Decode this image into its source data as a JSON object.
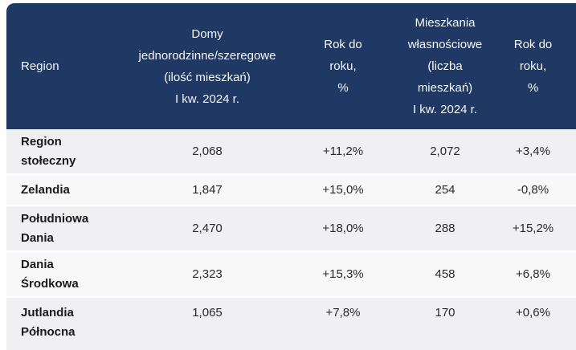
{
  "colors": {
    "header_bg": "#1f3864",
    "header_text": "#f5f7fa",
    "row_odd": "#f0f0f2",
    "row_even": "#f8f8f9",
    "body_text": "#2a2a2a"
  },
  "chart_data": {
    "type": "table",
    "columns": [
      "Region",
      "Domy jednorodzinne/szeregowe (ilość mieszkań) I kw. 2024 r.",
      "Rok do roku, %",
      "Mieszkania własnościowe (liczba mieszkań) I kw. 2024 r.",
      "Rok do roku, %"
    ],
    "rows": [
      [
        "Region stołeczny",
        "2,068",
        "+11,2%",
        "2,072",
        "+3,4%"
      ],
      [
        "Zelandia",
        "1,847",
        "+15,0%",
        "254",
        "-0,8%"
      ],
      [
        "Południowa Dania",
        "2,470",
        "+18,0%",
        "288",
        "+15,2%"
      ],
      [
        "Dania Środkowa",
        "2,323",
        "+15,3%",
        "458",
        "+6,8%"
      ],
      [
        "Jutlandia Północna",
        "1,065",
        "+7,8%",
        "170",
        "+0,6%"
      ]
    ]
  },
  "table": {
    "header": {
      "region": "Region",
      "homes": "Domy\njednorodzinne/szeregowe\n(ilość mieszkań)\nI kw. 2024 r.",
      "homes_yoy": "Rok do\nroku,\n%",
      "flats": "Mieszkania\nwłasnościowe\n(liczba\nmieszkań)\nI kw. 2024 r.",
      "flats_yoy": "Rok do\nroku,\n%"
    },
    "rows": [
      {
        "region": "Region\nstołeczny",
        "homes": "2,068",
        "homes_yoy": "+11,2%",
        "flats": "2,072",
        "flats_yoy": "+3,4%"
      },
      {
        "region": "Zelandia",
        "homes": "1,847",
        "homes_yoy": "+15,0%",
        "flats": "254",
        "flats_yoy": "-0,8%"
      },
      {
        "region": "Południowa\nDania",
        "homes": "2,470",
        "homes_yoy": "+18,0%",
        "flats": "288",
        "flats_yoy": "+15,2%"
      },
      {
        "region": "Dania\nŚrodkowa",
        "homes": "2,323",
        "homes_yoy": "+15,3%",
        "flats": "458",
        "flats_yoy": "+6,8%"
      },
      {
        "region": "Jutlandia\nPółnocna",
        "homes": "1,065",
        "homes_yoy": "+7,8%",
        "flats": "170",
        "flats_yoy": "+0,6%"
      }
    ]
  }
}
